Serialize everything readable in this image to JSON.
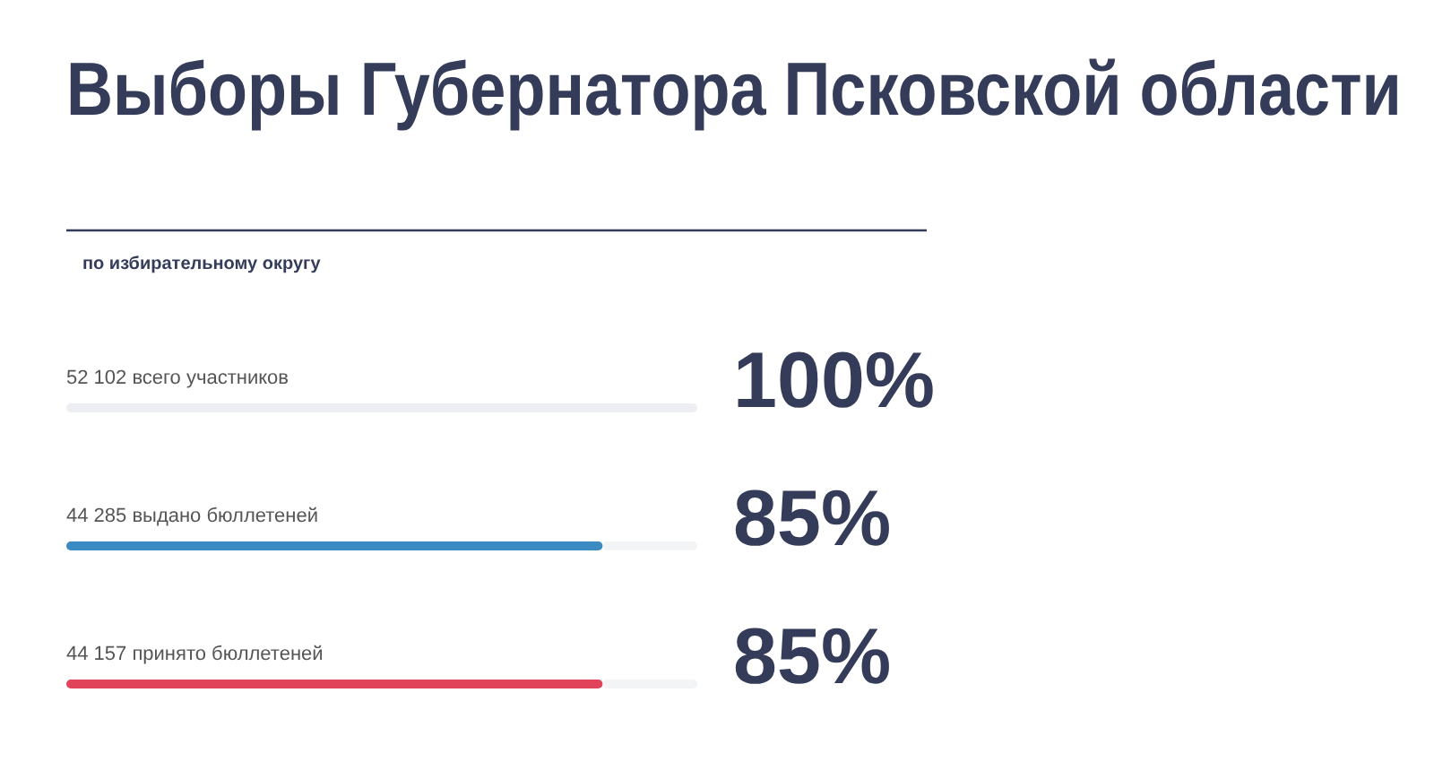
{
  "chart_data": {
    "type": "bar",
    "orientation": "horizontal",
    "title": "Выборы Губернатора Псковской области",
    "subtitle": "по избирательному округу",
    "categories": [
      "52 102 всего участников",
      "44 285 выдано бюллетеней",
      "44 157 принято бюллетеней"
    ],
    "values": [
      100,
      85,
      85
    ],
    "colors": [
      "#eceef1",
      "#3b8bc2",
      "#e0435a"
    ],
    "value_labels": [
      "100%",
      "85%",
      "85%"
    ],
    "xlim": [
      0,
      100
    ]
  }
}
